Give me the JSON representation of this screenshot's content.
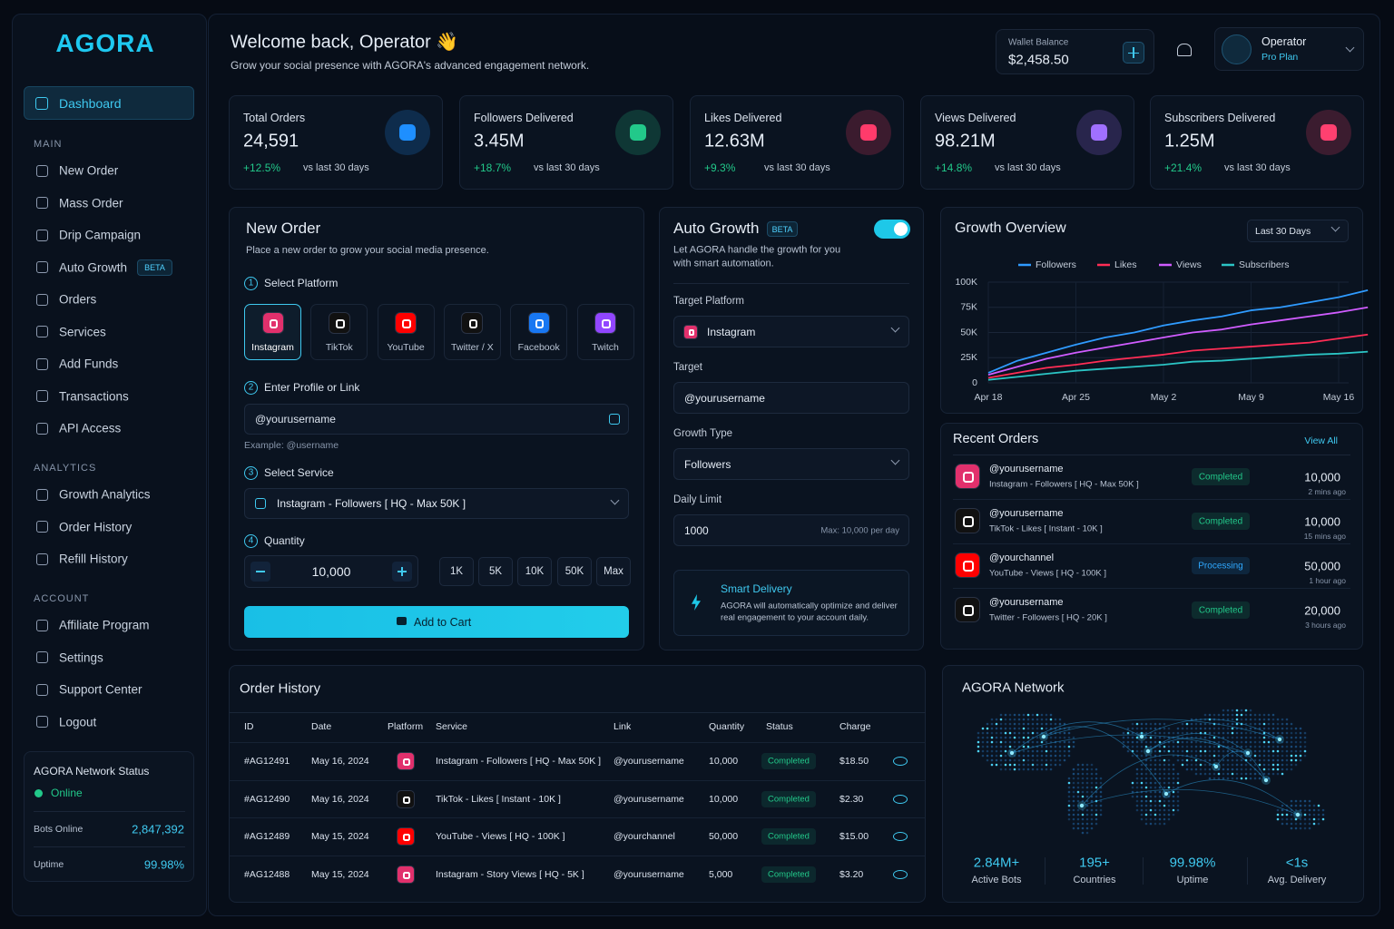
{
  "sidebar": {
    "logo": "AGORA",
    "active": "Dashboard",
    "sections": [
      {
        "title": "MAIN",
        "items": [
          {
            "label": "New Order"
          },
          {
            "label": "Mass Order"
          },
          {
            "label": "Drip Campaign"
          },
          {
            "label": "Auto Growth",
            "badge": "BETA"
          },
          {
            "label": "Orders"
          },
          {
            "label": "Services"
          },
          {
            "label": "Add Funds"
          },
          {
            "label": "Transactions"
          },
          {
            "label": "API Access"
          }
        ]
      },
      {
        "title": "ANALYTICS",
        "items": [
          {
            "label": "Growth Analytics"
          },
          {
            "label": "Order History"
          },
          {
            "label": "Refill History"
          }
        ]
      },
      {
        "title": "ACCOUNT",
        "items": [
          {
            "label": "Affiliate Program"
          },
          {
            "label": "Settings"
          },
          {
            "label": "Support Center"
          },
          {
            "label": "Logout"
          }
        ]
      }
    ],
    "status": {
      "title": "AGORA Network Status",
      "state": "Online",
      "rows": [
        {
          "label": "Bots Online",
          "value": "2,847,392"
        },
        {
          "label": "Uptime",
          "value": "99.98%"
        }
      ]
    }
  },
  "header": {
    "title": "Welcome back, Operator 👋",
    "subtitle": "Grow your social presence with AGORA's advanced engagement network.",
    "wallet_label": "Wallet Balance",
    "wallet_balance": "$2,458.50",
    "user": "Operator",
    "plan": "Pro Plan"
  },
  "stats": [
    {
      "label": "Total Orders",
      "value": "24,591",
      "change": "+12.5%",
      "note": "vs last 30 days",
      "color": "#1e8fff"
    },
    {
      "label": "Followers Delivered",
      "value": "3.45M",
      "change": "+18.7%",
      "note": "vs last 30 days",
      "color": "#22c98a"
    },
    {
      "label": "Likes Delivered",
      "value": "12.63M",
      "change": "+9.3%",
      "note": "vs last 30 days",
      "color": "#ff3b6b"
    },
    {
      "label": "Views Delivered",
      "value": "98.21M",
      "change": "+14.8%",
      "note": "vs last 30 days",
      "color": "#a070ff"
    },
    {
      "label": "Subscribers Delivered",
      "value": "1.25M",
      "change": "+21.4%",
      "note": "vs last 30 days",
      "color": "#ff4070"
    }
  ],
  "new_order": {
    "title": "New Order",
    "subtitle": "Place a new order to grow your social media presence.",
    "steps": [
      {
        "number": "1",
        "label": "Select Platform"
      },
      {
        "number": "2",
        "label": "Enter Profile or Link"
      },
      {
        "number": "3",
        "label": "Select Service"
      },
      {
        "number": "4",
        "label": "Quantity"
      }
    ],
    "platforms": [
      {
        "name": "Instagram",
        "color": "#e1306c"
      },
      {
        "name": "TikTok",
        "color": "#111111"
      },
      {
        "name": "YouTube",
        "color": "#ff0000"
      },
      {
        "name": "Twitter / X",
        "color": "#111111"
      },
      {
        "name": "Facebook",
        "color": "#1877f2"
      },
      {
        "name": "Twitch",
        "color": "#9146ff"
      }
    ],
    "profile_placeholder": "@yourusername",
    "profile_hint": "Example: @username",
    "service": "Instagram - Followers [ HQ - Max 50K ]",
    "quantity": "10,000",
    "presets": [
      "1K",
      "5K",
      "10K",
      "50K",
      "Max"
    ],
    "button": "Add to Cart"
  },
  "auto_growth": {
    "title": "Auto Growth",
    "badge": "BETA",
    "description": "Let AGORA handle the growth for you with smart automation.",
    "fields": [
      {
        "label": "Target Platform",
        "value": "Instagram"
      },
      {
        "label": "Target",
        "value": "@yourusername"
      },
      {
        "label": "Growth Type",
        "value": "Followers"
      },
      {
        "label": "Daily Limit",
        "value": "1000",
        "hint": "Max: 10,000 per day"
      }
    ],
    "smart_title": "Smart Delivery",
    "smart_text": "AGORA will automatically optimize and deliver real engagement to your account daily."
  },
  "chart_data": {
    "type": "line",
    "title": "Growth Overview",
    "range": "Last 30 Days",
    "categories": [
      "Apr 18",
      null,
      null,
      "Apr 25",
      null,
      null,
      "May 2",
      null,
      null,
      "May 9",
      null,
      null,
      "May 16",
      null
    ],
    "series": [
      {
        "name": "Followers",
        "color": "#2f9bff",
        "values": [
          10000,
          22000,
          30000,
          38000,
          45000,
          50000,
          57000,
          62000,
          66000,
          72000,
          75000,
          80000,
          85000,
          92000
        ]
      },
      {
        "name": "Likes",
        "color": "#ff2d55",
        "values": [
          5000,
          10000,
          15000,
          18000,
          22000,
          25000,
          28000,
          32000,
          34000,
          36000,
          38000,
          40000,
          44000,
          48000
        ]
      },
      {
        "name": "Views",
        "color": "#d05cff",
        "values": [
          8000,
          16000,
          24000,
          30000,
          35000,
          40000,
          45000,
          50000,
          53000,
          58000,
          62000,
          66000,
          70000,
          75000
        ]
      },
      {
        "name": "Subscribers",
        "color": "#2bc4c4",
        "values": [
          3000,
          6000,
          9000,
          12000,
          14000,
          16000,
          18000,
          21000,
          22000,
          24000,
          26000,
          28000,
          29000,
          31000
        ]
      }
    ],
    "ylim": [
      0,
      100000
    ],
    "yticks": [
      0,
      {
        "value": 25000,
        "label": "25K"
      },
      {
        "value": 50000,
        "label": "50K"
      },
      {
        "value": 75000,
        "label": "75K"
      },
      {
        "value": 100000,
        "label": "100K"
      }
    ],
    "grid": true
  },
  "recent_orders": {
    "title": "Recent Orders",
    "link": "View All",
    "rows": [
      {
        "handle": "@yourusername",
        "service": "Instagram - Followers [ HQ - Max 50K ]",
        "status": "Completed",
        "status_color": "#22c98a",
        "amount": "10,000",
        "time": "2 mins ago",
        "icon_color": "#e1306c"
      },
      {
        "handle": "@yourusername",
        "service": "TikTok - Likes [ Instant - 10K ]",
        "status": "Completed",
        "status_color": "#22c98a",
        "amount": "10,000",
        "time": "15 mins ago",
        "icon_color": "#111111"
      },
      {
        "handle": "@yourchannel",
        "service": "YouTube - Views [ HQ - 100K ]",
        "status": "Processing",
        "status_color": "#2fa8ff",
        "amount": "50,000",
        "time": "1 hour ago",
        "icon_color": "#ff0000"
      },
      {
        "handle": "@yourusername",
        "service": "Twitter - Followers [ HQ - 20K ]",
        "status": "Completed",
        "status_color": "#22c98a",
        "amount": "20,000",
        "time": "3 hours ago",
        "icon_color": "#111111"
      }
    ]
  },
  "order_history": {
    "title": "Order History",
    "columns": [
      "ID",
      "Date",
      "Platform",
      "Service",
      "Link",
      "Quantity",
      "Status",
      "Charge"
    ],
    "rows": [
      {
        "id": "#AG12491",
        "date": "May 16, 2024",
        "icon_color": "#e1306c",
        "service": "Instagram - Followers [ HQ - Max 50K ]",
        "link": "@yourusername",
        "quantity": "10,000",
        "status": "Completed",
        "charge": "$18.50"
      },
      {
        "id": "#AG12490",
        "date": "May 16, 2024",
        "icon_color": "#111111",
        "service": "TikTok - Likes [ Instant - 10K ]",
        "link": "@yourusername",
        "quantity": "10,000",
        "status": "Completed",
        "charge": "$2.30"
      },
      {
        "id": "#AG12489",
        "date": "May 15, 2024",
        "icon_color": "#ff0000",
        "service": "YouTube - Views [ HQ - 100K ]",
        "link": "@yourchannel",
        "quantity": "50,000",
        "status": "Completed",
        "charge": "$15.00"
      },
      {
        "id": "#AG12488",
        "date": "May 15, 2024",
        "icon_color": "#e1306c",
        "service": "Instagram - Story Views [ HQ - 5K ]",
        "link": "@yourusername",
        "quantity": "5,000",
        "status": "Completed",
        "charge": "$3.20"
      }
    ]
  },
  "network": {
    "title": "AGORA Network",
    "stats": [
      {
        "value": "2.84M+",
        "label": "Active Bots"
      },
      {
        "value": "195+",
        "label": "Countries"
      },
      {
        "value": "99.98%",
        "label": "Uptime"
      },
      {
        "value": "<1s",
        "label": "Avg. Delivery"
      }
    ]
  }
}
